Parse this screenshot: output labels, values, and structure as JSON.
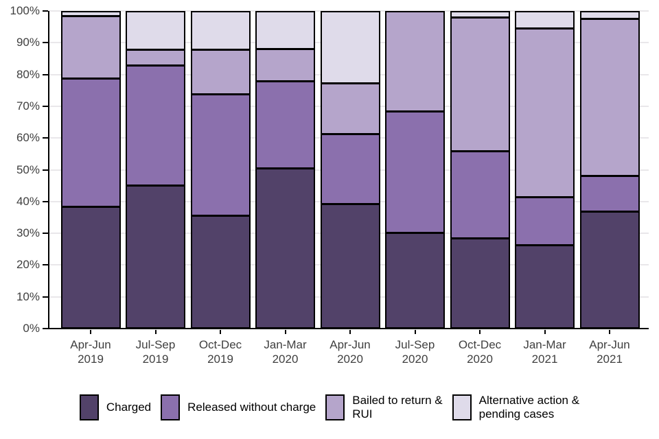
{
  "chart_data": {
    "type": "bar",
    "variant": "stacked-percent",
    "title": "",
    "xlabel": "",
    "ylabel": "",
    "ylim": [
      0,
      100
    ],
    "grid": "horizontal-major-10pct",
    "legend_position": "bottom",
    "y_ticks": [
      "0%",
      "10%",
      "20%",
      "30%",
      "40%",
      "50%",
      "60%",
      "70%",
      "80%",
      "90%",
      "100%"
    ],
    "categories": [
      [
        "Apr-Jun",
        "2019"
      ],
      [
        "Jul-Sep",
        "2019"
      ],
      [
        "Oct-Dec",
        "2019"
      ],
      [
        "Jan-Mar",
        "2020"
      ],
      [
        "Apr-Jun",
        "2020"
      ],
      [
        "Jul-Sep",
        "2020"
      ],
      [
        "Oct-Dec",
        "2020"
      ],
      [
        "Jan-Mar",
        "2021"
      ],
      [
        "Apr-Jun",
        "2021"
      ]
    ],
    "series": [
      {
        "name": "Charged",
        "legend_lines": [
          "Charged"
        ],
        "color": "#524269",
        "values": [
          38.0,
          44.7,
          35.0,
          50.0,
          38.7,
          29.6,
          27.8,
          25.7,
          36.3
        ]
      },
      {
        "name": "Released without charge",
        "legend_lines": [
          "Released without charge"
        ],
        "color": "#8B70AD",
        "values": [
          40.7,
          38.0,
          38.7,
          27.7,
          22.2,
          38.6,
          27.8,
          15.3,
          11.4
        ]
      },
      {
        "name": "Bailed to return & RUI",
        "legend_lines": [
          "Bailed to return &",
          "RUI"
        ],
        "color": "#B5A5CB",
        "values": [
          19.8,
          5.2,
          14.2,
          10.4,
          16.3,
          31.8,
          42.5,
          53.6,
          49.8
        ]
      },
      {
        "name": "Alternative action & pending cases",
        "legend_lines": [
          "Alternative action &",
          "pending cases"
        ],
        "color": "#DFDBEA",
        "values": [
          1.5,
          12.1,
          12.1,
          11.9,
          22.8,
          0.0,
          1.9,
          5.4,
          2.5
        ]
      }
    ],
    "colors": {
      "axis_line": "#000000",
      "axis_text": "#3f3f3f",
      "gridline": "#e9e7ea",
      "bar_border": "#000000",
      "background": "#ffffff"
    }
  }
}
